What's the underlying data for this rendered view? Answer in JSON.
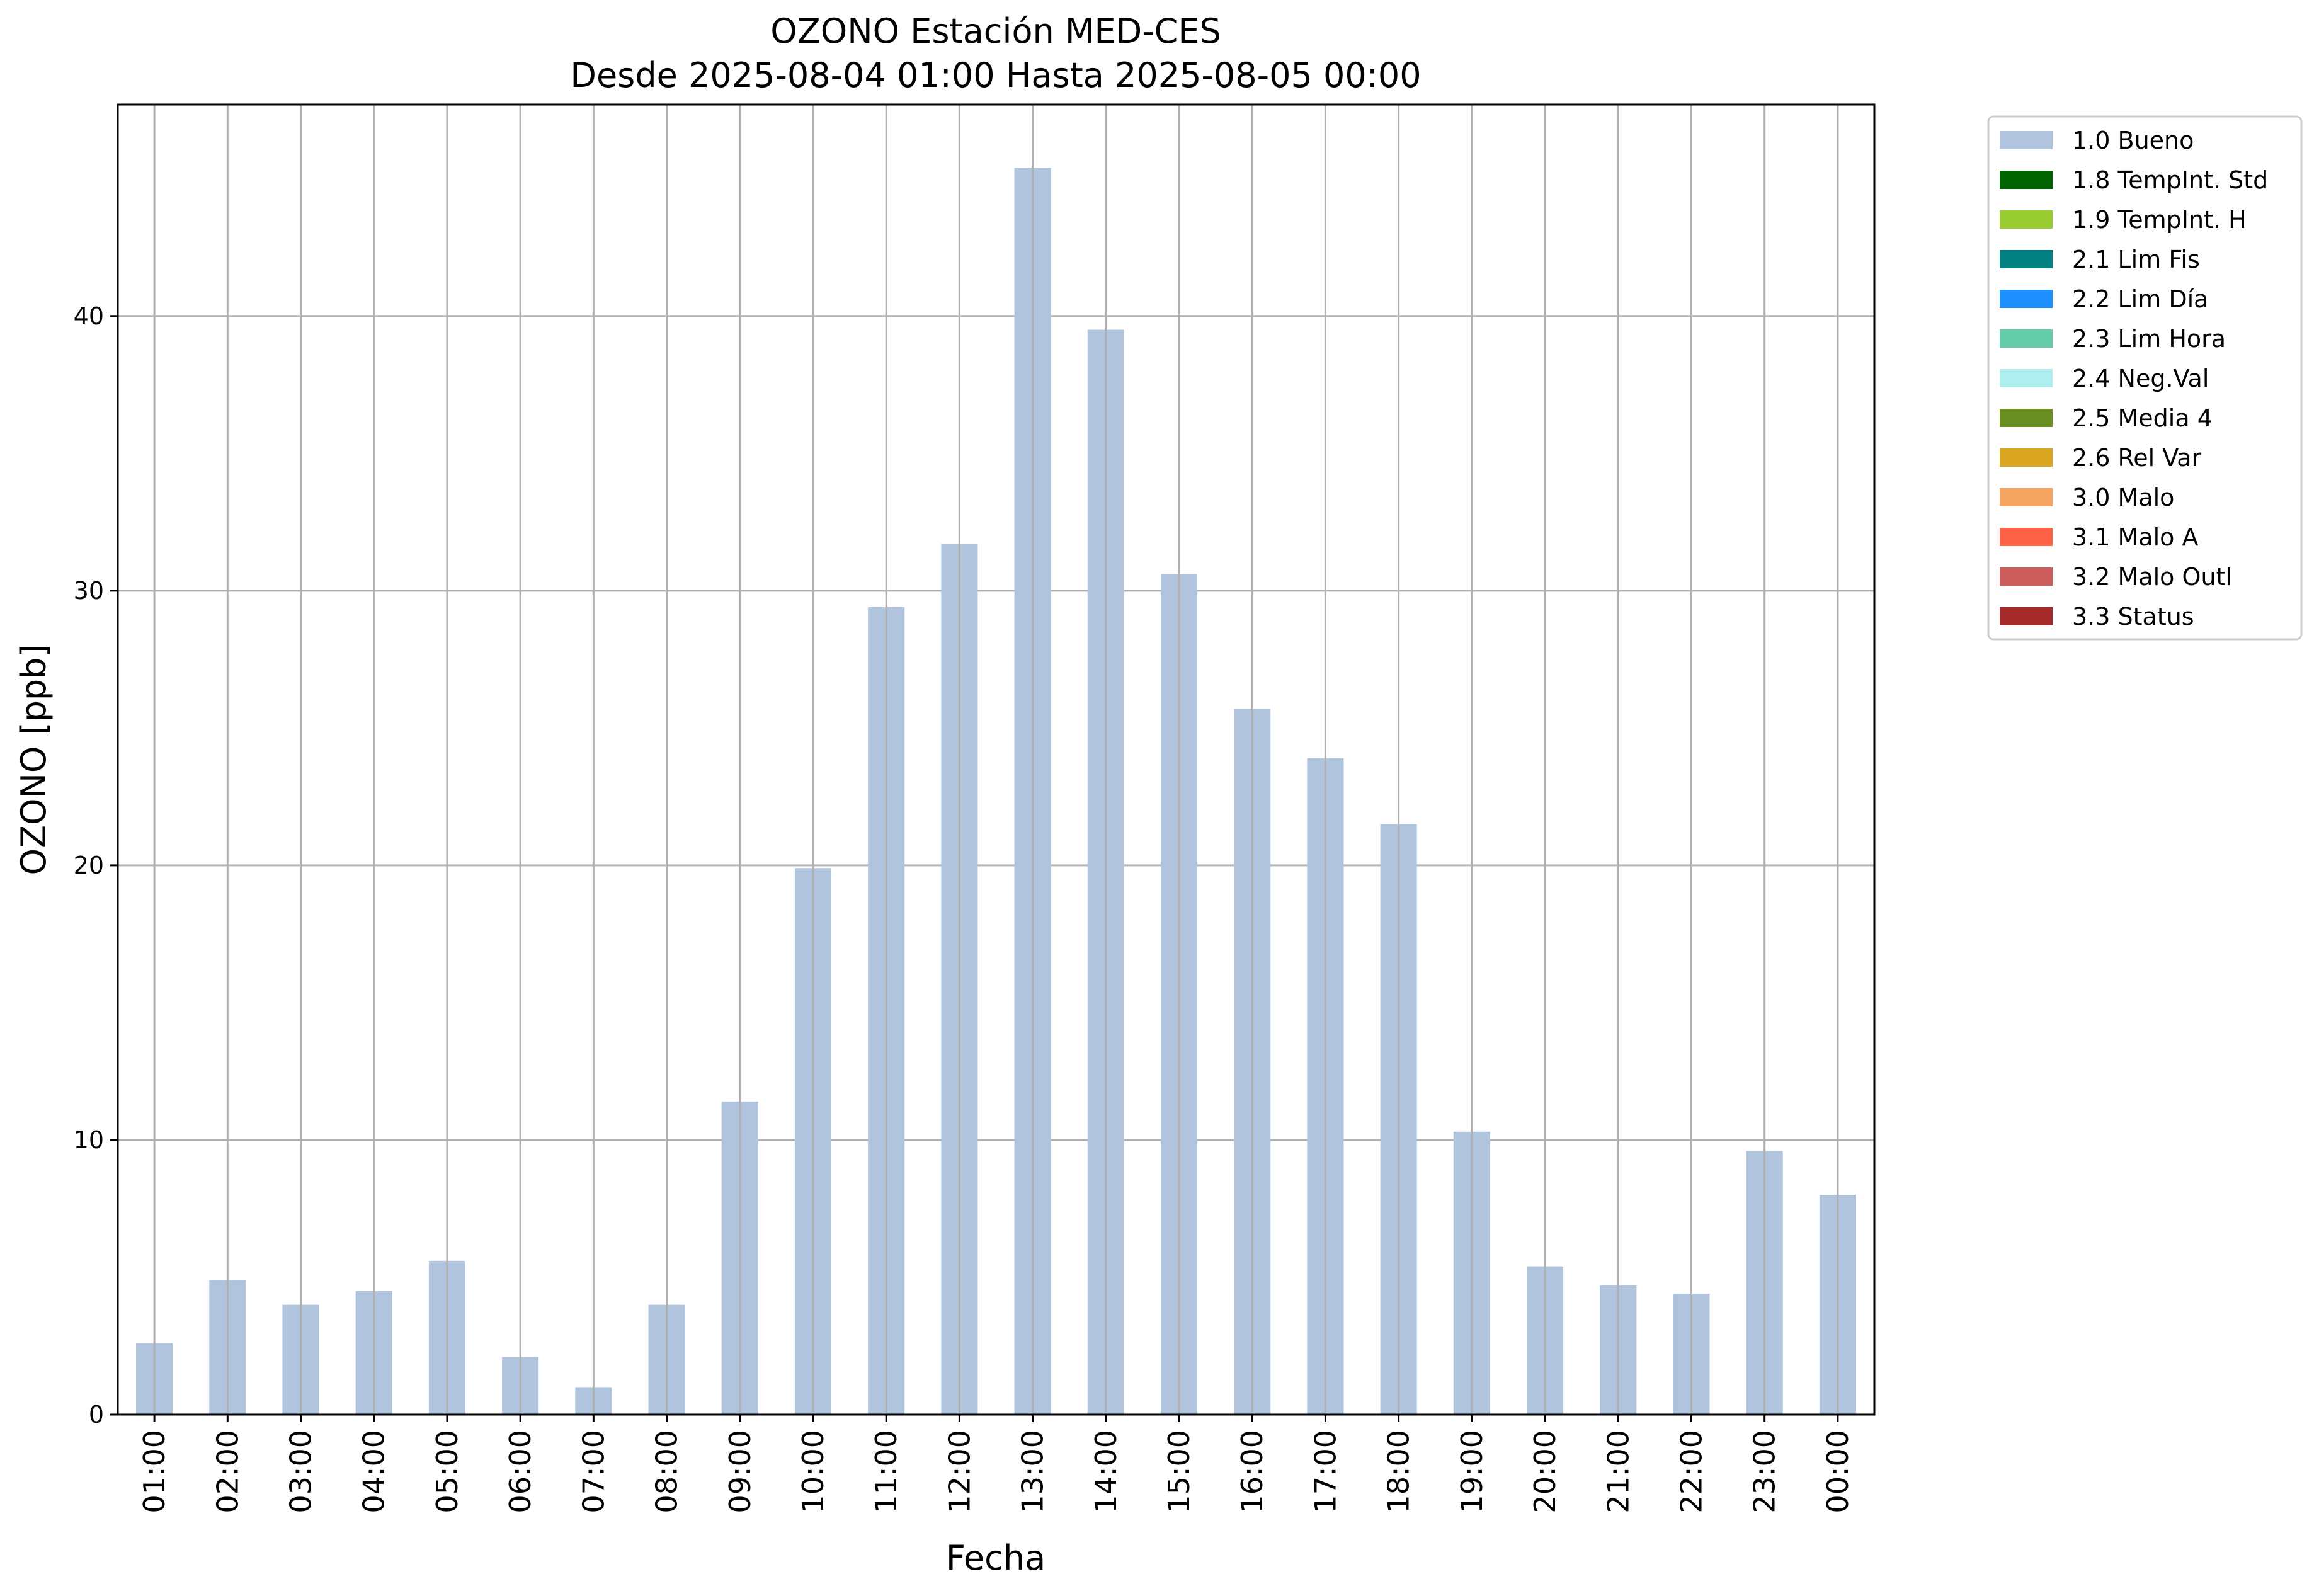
{
  "chart_data": {
    "type": "bar",
    "title": "OZONO Estación MED-CES",
    "subtitle": "Desde 2025-08-04 01:00 Hasta 2025-08-05 00:00",
    "xlabel": "Fecha",
    "ylabel": "OZONO [ppb]",
    "ylim": [
      0,
      47.7
    ],
    "yticks": [
      0,
      10,
      20,
      30,
      40
    ],
    "grid": true,
    "legend_position": "outside-top-right",
    "categories": [
      "01:00",
      "02:00",
      "03:00",
      "04:00",
      "05:00",
      "06:00",
      "07:00",
      "08:00",
      "09:00",
      "10:00",
      "11:00",
      "12:00",
      "13:00",
      "14:00",
      "15:00",
      "16:00",
      "17:00",
      "18:00",
      "19:00",
      "20:00",
      "21:00",
      "22:00",
      "23:00",
      "00:00"
    ],
    "series": [
      {
        "name": "1.0 Bueno",
        "color": "#b0c4de",
        "values": [
          2.6,
          4.9,
          4.0,
          4.5,
          5.6,
          2.1,
          1.0,
          4.0,
          11.4,
          19.9,
          29.4,
          31.7,
          45.4,
          39.5,
          30.6,
          25.7,
          23.9,
          21.5,
          10.3,
          5.4,
          4.7,
          4.4,
          9.6,
          8.0
        ]
      }
    ],
    "legend": [
      {
        "label": "1.0 Bueno",
        "color": "#b0c4de"
      },
      {
        "label": "1.8 TempInt. Std",
        "color": "#006400"
      },
      {
        "label": "1.9 TempInt. H",
        "color": "#9acd32"
      },
      {
        "label": "2.1 Lim Fis",
        "color": "#008080"
      },
      {
        "label": "2.2 Lim Día",
        "color": "#1e90ff"
      },
      {
        "label": "2.3 Lim Hora",
        "color": "#66cdaa"
      },
      {
        "label": "2.4 Neg.Val",
        "color": "#afeeee"
      },
      {
        "label": "2.5 Media 4",
        "color": "#6b8e23"
      },
      {
        "label": "2.6 Rel Var",
        "color": "#daa520"
      },
      {
        "label": "3.0 Malo",
        "color": "#f4a460"
      },
      {
        "label": "3.1 Malo A",
        "color": "#ff6347"
      },
      {
        "label": "3.2 Malo Outl",
        "color": "#cd5c5c"
      },
      {
        "label": "3.3 Status",
        "color": "#a52a2a"
      }
    ]
  }
}
